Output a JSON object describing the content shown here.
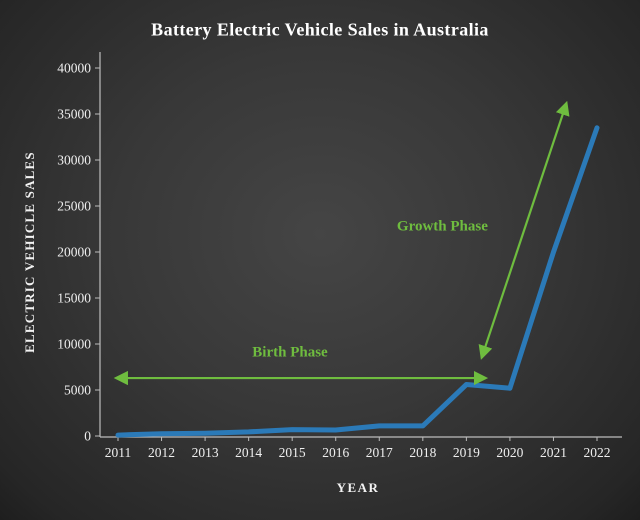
{
  "chart_data": {
    "type": "line",
    "title": "Battery Electric Vehicle Sales in Australia",
    "xlabel": "YEAR",
    "ylabel": "ELECTRIC VEHICLE SALES",
    "x": [
      2011,
      2012,
      2013,
      2014,
      2015,
      2016,
      2017,
      2018,
      2019,
      2020,
      2021,
      2022
    ],
    "values": [
      100,
      250,
      300,
      450,
      700,
      650,
      1100,
      1100,
      5600,
      5200,
      20000,
      33500
    ],
    "ylim": [
      0,
      40000
    ],
    "ytick_step": 5000,
    "grid": false,
    "legend": "none",
    "line_color": "#2b7ab8",
    "annotation_color": "#6fbd3f",
    "annotations": [
      {
        "label": "Birth Phase",
        "label_x": 2014.95,
        "label_y": 9000,
        "arrow": {
          "x1": 2010.95,
          "y1": 6300,
          "x2": 2019.45,
          "y2": 6300
        }
      },
      {
        "label": "Growth Phase",
        "label_x": 2018.45,
        "label_y": 22700,
        "arrow": {
          "x1": 2021.3,
          "y1": 36200,
          "x2": 2019.35,
          "y2": 8500
        }
      }
    ]
  }
}
